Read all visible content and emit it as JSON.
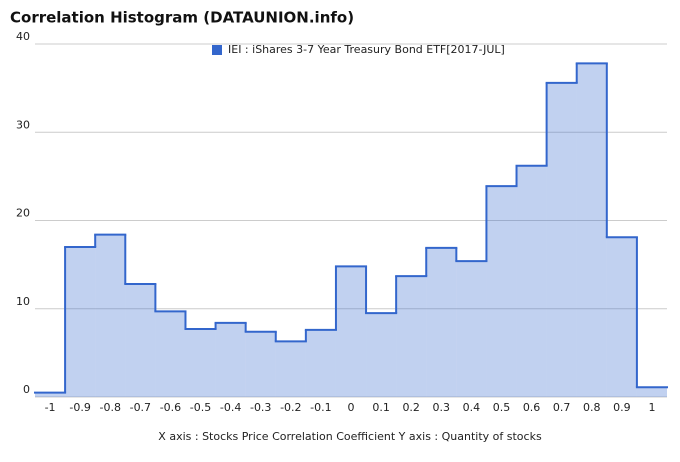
{
  "chart_data": {
    "type": "histogram",
    "title": "Correlation Histogram (DATAUNION.info)",
    "x_label": "X axis : Stocks Price Correlation Coefficient  Y axis : Quantity of stocks",
    "bins": [
      -1.05,
      -0.95,
      -0.85,
      -0.75,
      -0.65,
      -0.55,
      -0.45,
      -0.35,
      -0.25,
      -0.15,
      -0.05,
      0.05,
      0.15,
      0.25,
      0.35,
      0.45,
      0.55,
      0.65,
      0.75,
      0.85,
      0.95,
      1.05
    ],
    "series": [
      {
        "name": "IEI : iShares 3-7 Year Treasury Bond ETF[2017-JUL]",
        "color": "#3366cc",
        "values": [
          0.5,
          17,
          18.4,
          12.8,
          9.7,
          7.7,
          8.4,
          7.4,
          6.3,
          7.6,
          14.8,
          9.5,
          13.7,
          16.9,
          15.4,
          23.9,
          26.2,
          35.6,
          37.8,
          18.1,
          1.1
        ]
      }
    ],
    "xlim": [
      -1.05,
      1.05
    ],
    "xticks": [
      -1,
      -0.9,
      -0.8,
      -0.7,
      -0.6,
      -0.5,
      -0.4,
      -0.3,
      -0.2,
      -0.1,
      0,
      0.1,
      0.2,
      0.3,
      0.4,
      0.5,
      0.6,
      0.7,
      0.8,
      0.9,
      1
    ],
    "ylim": [
      0,
      40
    ],
    "yticks": [
      0,
      10,
      20,
      30,
      40
    ],
    "grid": true,
    "legend": "top"
  }
}
